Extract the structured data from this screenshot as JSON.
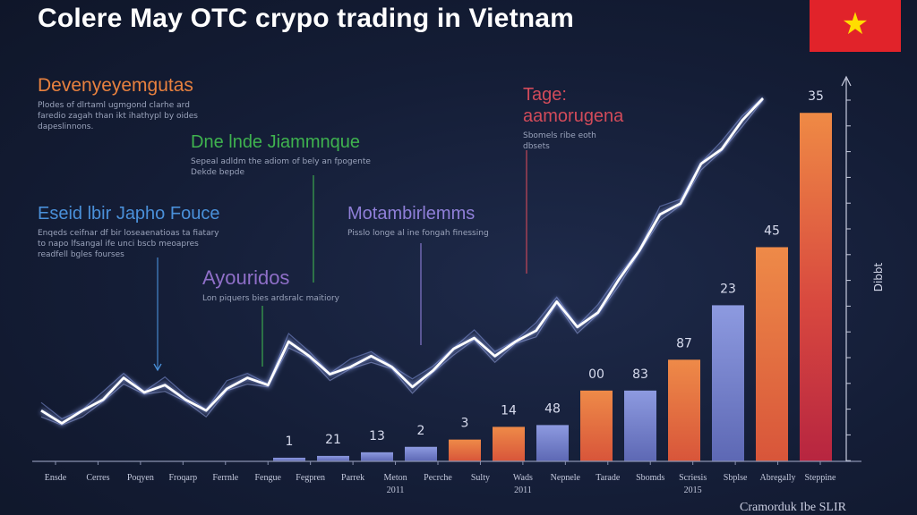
{
  "title": "Colere May OTC crypo trading in Vietnam",
  "footer": "Cramorduk Ibe SLIR",
  "flag": {
    "star": "★",
    "colors": {
      "field": "#e1232a",
      "star": "#ffdd00"
    }
  },
  "annotations": [
    {
      "heading": "Devenyeyemgutas",
      "body": "Plodes of dlrtaml ugmgond clarhe ard\nfaredio zagah than ikt ihathypl by oides\ndapeslinnons.",
      "color": "#e8813f"
    },
    {
      "heading": "Dne lnde Jiammnque",
      "body": "Sepeal adldm the adiom of bely an fpogente\nDekde bepde",
      "color": "#3fb34f"
    },
    {
      "heading": "Eseid lbir Japho Fouce",
      "body": "Enqeds ceifnar df bir loseaenatioas ta fiatary\nto napo lfsangal ife unci bscb meoapres\nreadfell bgles fourses",
      "color": "#4a90d9"
    },
    {
      "heading": "Ayouridos",
      "body": "Lon piquers bies ardsralc maitiory",
      "color": "#8f6fc8"
    },
    {
      "heading": "Motambirlemms",
      "body": "Pisslo longe al ine fongah finessing",
      "color": "#8f7fd8"
    },
    {
      "heading": "Tage:\naamorugena",
      "body": "Sbomels ribe eoth\ndbsets",
      "color": "#d24b5a"
    }
  ],
  "chart_data": {
    "type": "bar",
    "ylabel": "Dibbt",
    "ylim": [
      0,
      100
    ],
    "x_categories": [
      "Ensde",
      "Cerres",
      "Poqyen",
      "Froqarp",
      "Ferrnle",
      "Fengue",
      "Fegpren",
      "Parrek",
      "Meton\n2011",
      "Pecrche",
      "Sulty",
      "Wads\n2011",
      "Nepnele",
      "Tarade",
      "Sbomds",
      "Scriesis\n2015",
      "Sbplse",
      "Abregally",
      "Steppine"
    ],
    "bars": [
      {
        "label": "1",
        "value": 1,
        "color": "#7a86cc"
      },
      {
        "label": "21",
        "value": 1.5,
        "color": "#7a86cc"
      },
      {
        "label": "13",
        "value": 2.5,
        "color": "#7a86cc"
      },
      {
        "label": "2",
        "value": 4,
        "color": "#7a86cc"
      },
      {
        "label": "3",
        "value": 6,
        "color": "#e0703f"
      },
      {
        "label": "14",
        "value": 9.5,
        "color": "#e0703f"
      },
      {
        "label": "48",
        "value": 10,
        "color": "#7a86cc"
      },
      {
        "label": "00",
        "value": 19.5,
        "color": "#e0703f"
      },
      {
        "label": "83",
        "value": 19.5,
        "color": "#7a86cc"
      },
      {
        "label": "87",
        "value": 28,
        "color": "#e0703f"
      },
      {
        "label": "23",
        "value": 43,
        "color": "#7a86cc"
      },
      {
        "label": "45",
        "value": 59,
        "color": "#e0703f"
      },
      {
        "label": "35",
        "value": 96,
        "color": "#e0703f"
      }
    ],
    "line": [
      14,
      10.5,
      14,
      17,
      23,
      19,
      21,
      17,
      14,
      20,
      23,
      21,
      33,
      29,
      24,
      26,
      29,
      26,
      20.5,
      25,
      31,
      34,
      29,
      33,
      36,
      44,
      37,
      41,
      50,
      58,
      68,
      71,
      82,
      86,
      94,
      100
    ],
    "legend": "none",
    "grid": false
  }
}
